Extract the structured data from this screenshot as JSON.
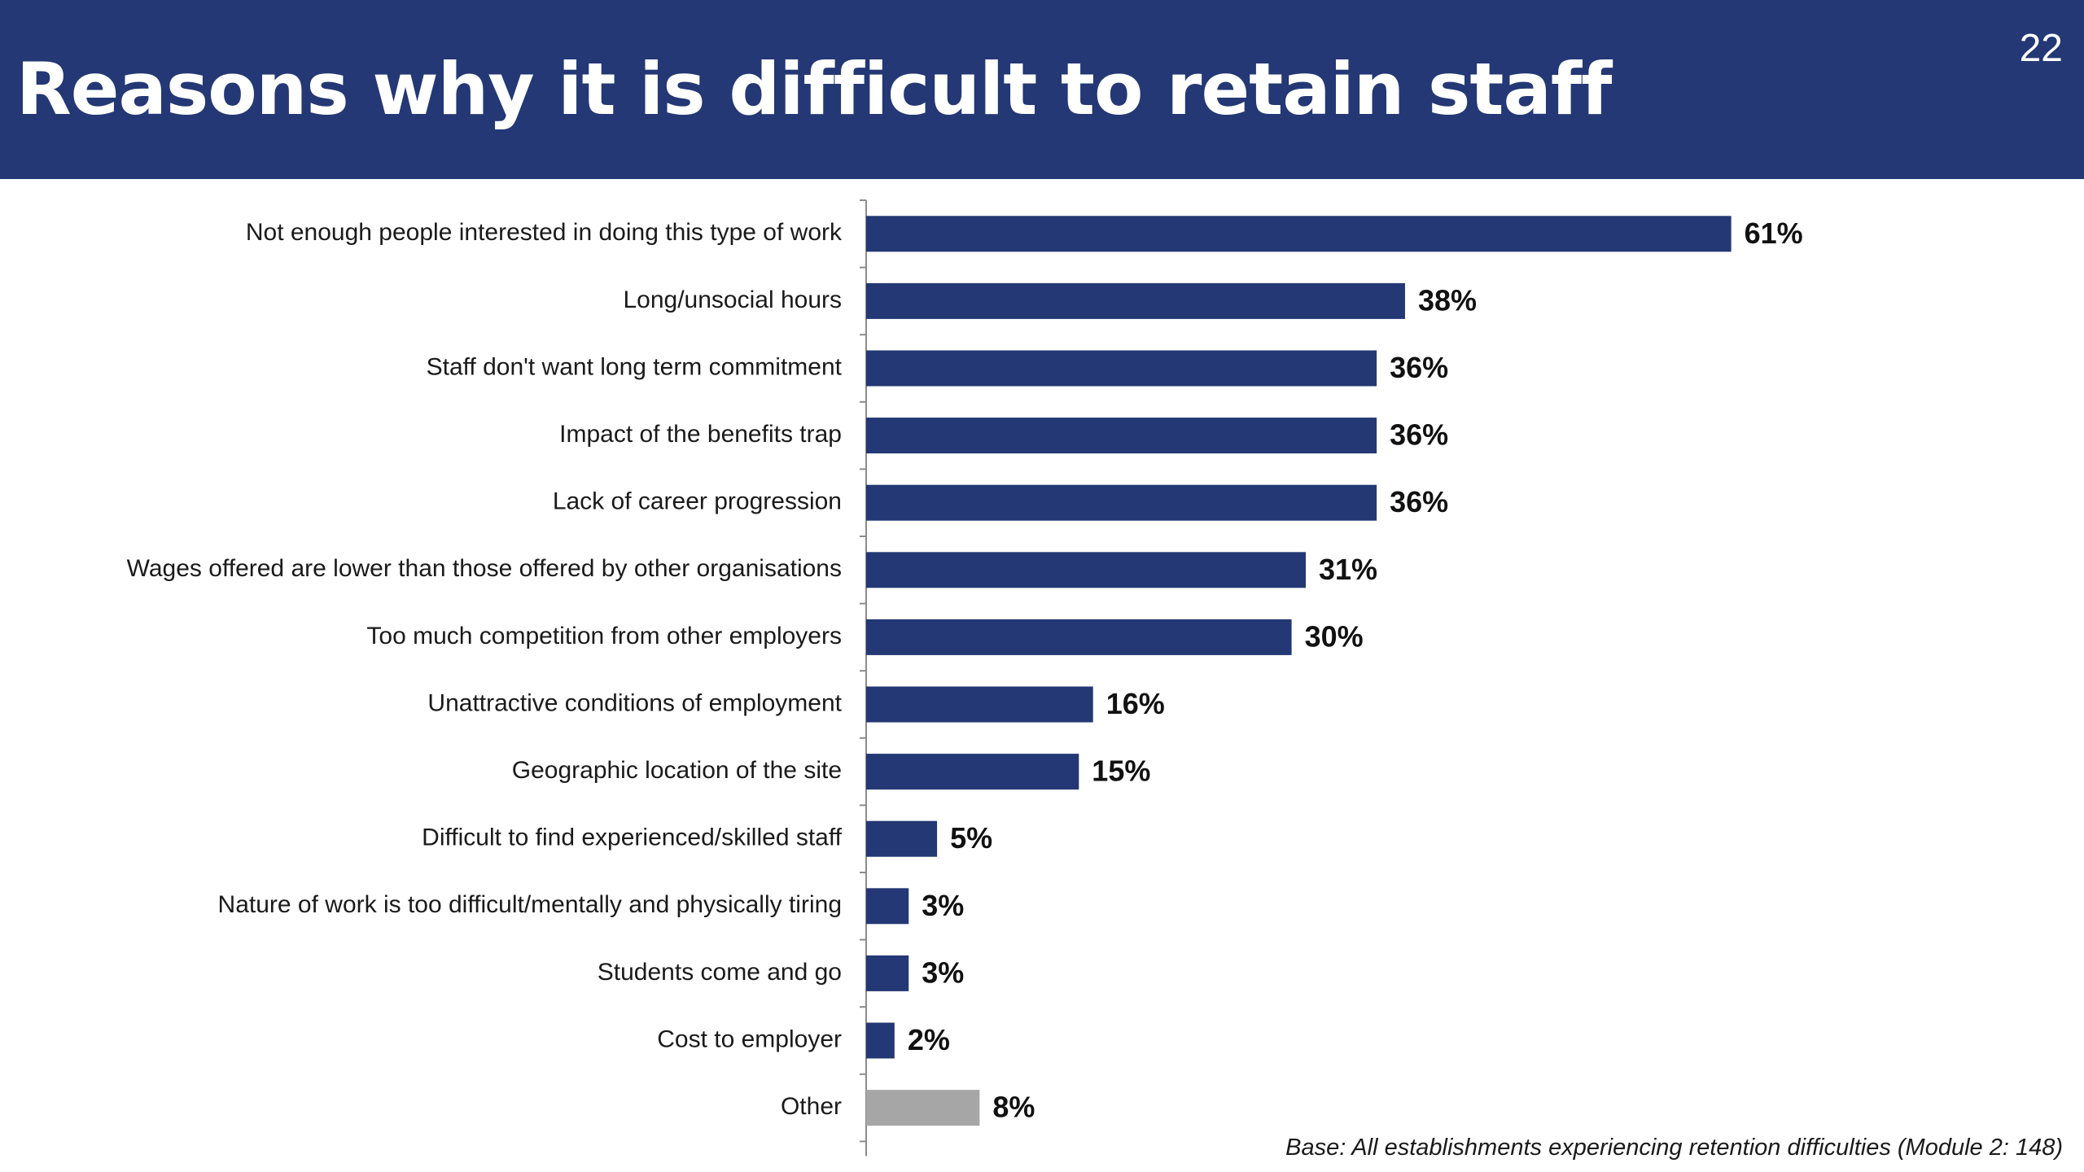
{
  "page": {
    "title": "Reasons why it is difficult to retain staff",
    "page_number": "22",
    "base_note": "Base: All establishments experiencing retention difficulties (Module 2: 148)"
  },
  "colors": {
    "header_background": "#233874",
    "bar_primary": "#233874",
    "bar_other": "#a6a6a6",
    "axis": "#8c8c8c"
  },
  "chart_data": {
    "type": "bar",
    "orientation": "horizontal",
    "categories": [
      "Not enough people interested in doing this type of work",
      "Long/unsocial hours",
      "Staff don't want long term commitment",
      "Impact of the benefits trap",
      "Lack of career progression",
      "Wages offered are lower than those offered by other organisations",
      "Too much competition from other employers",
      "Unattractive conditions of employment",
      "Geographic location of the site",
      "Difficult to find experienced/skilled staff",
      "Nature of work is too difficult/mentally and physically tiring",
      "Students come and go",
      "Cost to employer",
      "Other"
    ],
    "values": [
      61,
      38,
      36,
      36,
      36,
      31,
      30,
      16,
      15,
      5,
      3,
      3,
      2,
      8
    ],
    "data_labels": [
      "61%",
      "38%",
      "36%",
      "36%",
      "36%",
      "31%",
      "30%",
      "16%",
      "15%",
      "5%",
      "3%",
      "3%",
      "2%",
      "8%"
    ],
    "unit": "%",
    "xlim": [
      0,
      100
    ],
    "highlighted_category": "Other",
    "grid": false,
    "legend": "none"
  }
}
